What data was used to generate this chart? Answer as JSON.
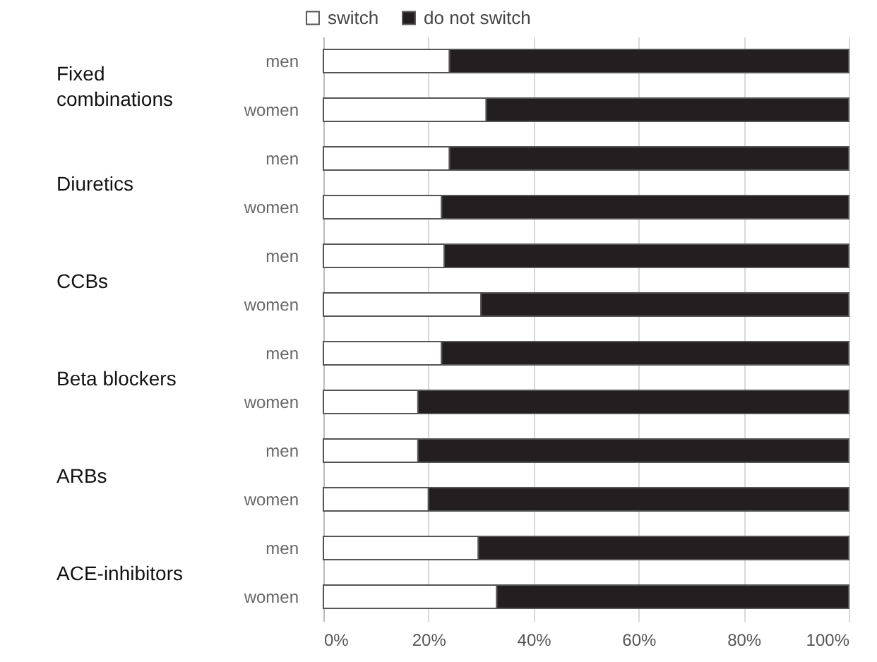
{
  "chart_data": {
    "type": "bar",
    "orientation": "horizontal",
    "stacked": true,
    "categories": [
      "men",
      "women",
      "men",
      "women",
      "men",
      "women",
      "men",
      "women",
      "men",
      "women",
      "men",
      "women"
    ],
    "series": [
      {
        "name": "switch",
        "color": "#ffffff",
        "values": [
          24,
          31,
          24,
          22.5,
          23,
          30,
          22.5,
          18,
          18,
          20,
          29.5,
          33
        ]
      },
      {
        "name": "do not switch",
        "color": "#231f20",
        "values": [
          76,
          69,
          76,
          77.5,
          77,
          70,
          77.5,
          82,
          82,
          80,
          70.5,
          67
        ]
      }
    ],
    "xlim": [
      0,
      100
    ],
    "xticks": [
      {
        "value": 0,
        "label": "0%"
      },
      {
        "value": 20,
        "label": "20%"
      },
      {
        "value": 40,
        "label": "40%"
      },
      {
        "value": 60,
        "label": "60%"
      },
      {
        "value": 80,
        "label": "80%"
      },
      {
        "value": 100,
        "label": "100%"
      }
    ],
    "grid": "x",
    "legend": "top",
    "annotations": [
      "Fixed combinations",
      "Diuretics",
      "CCBs",
      "Beta blockers",
      "ARBs",
      "ACE-inhibitors"
    ]
  }
}
